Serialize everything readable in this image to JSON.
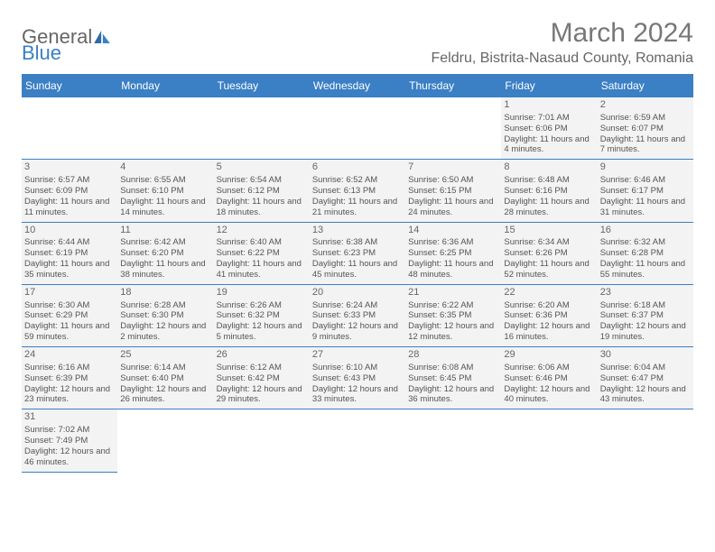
{
  "logo": {
    "part1": "General",
    "part2": "Blue"
  },
  "title": "March 2024",
  "location": "Feldru, Bistrita-Nasaud County, Romania",
  "colors": {
    "header_bg": "#3b7fc4",
    "header_fg": "#ffffff",
    "text": "#555555",
    "cell_bg": "#f3f3f3",
    "border": "#3b7fc4"
  },
  "weekdays": [
    "Sunday",
    "Monday",
    "Tuesday",
    "Wednesday",
    "Thursday",
    "Friday",
    "Saturday"
  ],
  "grid": [
    [
      null,
      null,
      null,
      null,
      null,
      {
        "n": "1",
        "sr": "Sunrise: 7:01 AM",
        "ss": "Sunset: 6:06 PM",
        "dl": "Daylight: 11 hours and 4 minutes."
      },
      {
        "n": "2",
        "sr": "Sunrise: 6:59 AM",
        "ss": "Sunset: 6:07 PM",
        "dl": "Daylight: 11 hours and 7 minutes."
      }
    ],
    [
      {
        "n": "3",
        "sr": "Sunrise: 6:57 AM",
        "ss": "Sunset: 6:09 PM",
        "dl": "Daylight: 11 hours and 11 minutes."
      },
      {
        "n": "4",
        "sr": "Sunrise: 6:55 AM",
        "ss": "Sunset: 6:10 PM",
        "dl": "Daylight: 11 hours and 14 minutes."
      },
      {
        "n": "5",
        "sr": "Sunrise: 6:54 AM",
        "ss": "Sunset: 6:12 PM",
        "dl": "Daylight: 11 hours and 18 minutes."
      },
      {
        "n": "6",
        "sr": "Sunrise: 6:52 AM",
        "ss": "Sunset: 6:13 PM",
        "dl": "Daylight: 11 hours and 21 minutes."
      },
      {
        "n": "7",
        "sr": "Sunrise: 6:50 AM",
        "ss": "Sunset: 6:15 PM",
        "dl": "Daylight: 11 hours and 24 minutes."
      },
      {
        "n": "8",
        "sr": "Sunrise: 6:48 AM",
        "ss": "Sunset: 6:16 PM",
        "dl": "Daylight: 11 hours and 28 minutes."
      },
      {
        "n": "9",
        "sr": "Sunrise: 6:46 AM",
        "ss": "Sunset: 6:17 PM",
        "dl": "Daylight: 11 hours and 31 minutes."
      }
    ],
    [
      {
        "n": "10",
        "sr": "Sunrise: 6:44 AM",
        "ss": "Sunset: 6:19 PM",
        "dl": "Daylight: 11 hours and 35 minutes."
      },
      {
        "n": "11",
        "sr": "Sunrise: 6:42 AM",
        "ss": "Sunset: 6:20 PM",
        "dl": "Daylight: 11 hours and 38 minutes."
      },
      {
        "n": "12",
        "sr": "Sunrise: 6:40 AM",
        "ss": "Sunset: 6:22 PM",
        "dl": "Daylight: 11 hours and 41 minutes."
      },
      {
        "n": "13",
        "sr": "Sunrise: 6:38 AM",
        "ss": "Sunset: 6:23 PM",
        "dl": "Daylight: 11 hours and 45 minutes."
      },
      {
        "n": "14",
        "sr": "Sunrise: 6:36 AM",
        "ss": "Sunset: 6:25 PM",
        "dl": "Daylight: 11 hours and 48 minutes."
      },
      {
        "n": "15",
        "sr": "Sunrise: 6:34 AM",
        "ss": "Sunset: 6:26 PM",
        "dl": "Daylight: 11 hours and 52 minutes."
      },
      {
        "n": "16",
        "sr": "Sunrise: 6:32 AM",
        "ss": "Sunset: 6:28 PM",
        "dl": "Daylight: 11 hours and 55 minutes."
      }
    ],
    [
      {
        "n": "17",
        "sr": "Sunrise: 6:30 AM",
        "ss": "Sunset: 6:29 PM",
        "dl": "Daylight: 11 hours and 59 minutes."
      },
      {
        "n": "18",
        "sr": "Sunrise: 6:28 AM",
        "ss": "Sunset: 6:30 PM",
        "dl": "Daylight: 12 hours and 2 minutes."
      },
      {
        "n": "19",
        "sr": "Sunrise: 6:26 AM",
        "ss": "Sunset: 6:32 PM",
        "dl": "Daylight: 12 hours and 5 minutes."
      },
      {
        "n": "20",
        "sr": "Sunrise: 6:24 AM",
        "ss": "Sunset: 6:33 PM",
        "dl": "Daylight: 12 hours and 9 minutes."
      },
      {
        "n": "21",
        "sr": "Sunrise: 6:22 AM",
        "ss": "Sunset: 6:35 PM",
        "dl": "Daylight: 12 hours and 12 minutes."
      },
      {
        "n": "22",
        "sr": "Sunrise: 6:20 AM",
        "ss": "Sunset: 6:36 PM",
        "dl": "Daylight: 12 hours and 16 minutes."
      },
      {
        "n": "23",
        "sr": "Sunrise: 6:18 AM",
        "ss": "Sunset: 6:37 PM",
        "dl": "Daylight: 12 hours and 19 minutes."
      }
    ],
    [
      {
        "n": "24",
        "sr": "Sunrise: 6:16 AM",
        "ss": "Sunset: 6:39 PM",
        "dl": "Daylight: 12 hours and 23 minutes."
      },
      {
        "n": "25",
        "sr": "Sunrise: 6:14 AM",
        "ss": "Sunset: 6:40 PM",
        "dl": "Daylight: 12 hours and 26 minutes."
      },
      {
        "n": "26",
        "sr": "Sunrise: 6:12 AM",
        "ss": "Sunset: 6:42 PM",
        "dl": "Daylight: 12 hours and 29 minutes."
      },
      {
        "n": "27",
        "sr": "Sunrise: 6:10 AM",
        "ss": "Sunset: 6:43 PM",
        "dl": "Daylight: 12 hours and 33 minutes."
      },
      {
        "n": "28",
        "sr": "Sunrise: 6:08 AM",
        "ss": "Sunset: 6:45 PM",
        "dl": "Daylight: 12 hours and 36 minutes."
      },
      {
        "n": "29",
        "sr": "Sunrise: 6:06 AM",
        "ss": "Sunset: 6:46 PM",
        "dl": "Daylight: 12 hours and 40 minutes."
      },
      {
        "n": "30",
        "sr": "Sunrise: 6:04 AM",
        "ss": "Sunset: 6:47 PM",
        "dl": "Daylight: 12 hours and 43 minutes."
      }
    ],
    [
      {
        "n": "31",
        "sr": "Sunrise: 7:02 AM",
        "ss": "Sunset: 7:49 PM",
        "dl": "Daylight: 12 hours and 46 minutes."
      },
      null,
      null,
      null,
      null,
      null,
      null
    ]
  ]
}
